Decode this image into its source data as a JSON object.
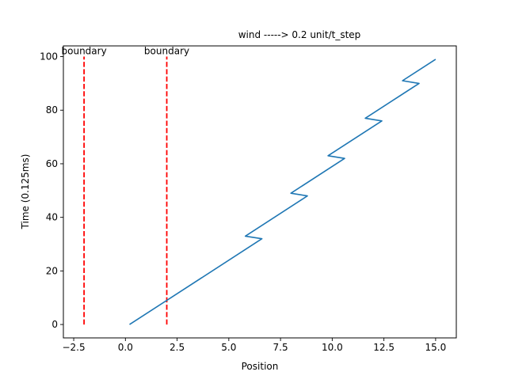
{
  "chart_data": {
    "type": "line",
    "title": "wind -----> 0.2 unit/t_step",
    "xlabel": "Position",
    "ylabel": "Time (0.125ms)",
    "xlim": [
      -3.0,
      16.0
    ],
    "ylim": [
      -5.0,
      104.0
    ],
    "x_ticks": [
      -2.5,
      0.0,
      2.5,
      5.0,
      7.5,
      10.0,
      12.5,
      15.0
    ],
    "x_tick_labels": [
      "−2.5",
      "0.0",
      "2.5",
      "5.0",
      "7.5",
      "10.0",
      "12.5",
      "15.0"
    ],
    "y_ticks": [
      0,
      20,
      40,
      60,
      80,
      100
    ],
    "y_tick_labels": [
      "0",
      "20",
      "40",
      "60",
      "80",
      "100"
    ],
    "grid": false,
    "series": [
      {
        "color": "#1f77b4",
        "x": [
          0.2,
          6.6,
          5.8,
          8.8,
          8.0,
          10.6,
          9.8,
          12.4,
          11.6,
          14.2,
          13.4,
          15.0
        ],
        "y": [
          0,
          32,
          33,
          48,
          49,
          62,
          63,
          76,
          77,
          90,
          91,
          99
        ]
      }
    ],
    "boundaries": [
      {
        "x": -2.0,
        "y_range": [
          0,
          100
        ],
        "label": "boundary",
        "color": "#ff0000"
      },
      {
        "x": 2.0,
        "y_range": [
          0,
          100
        ],
        "label": "boundary",
        "color": "#ff0000"
      }
    ]
  }
}
